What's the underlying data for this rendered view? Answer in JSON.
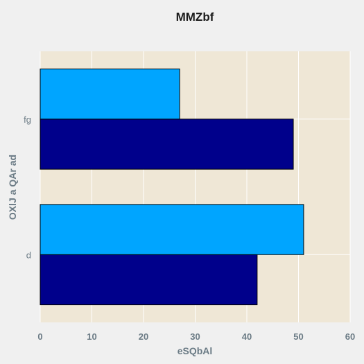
{
  "chart_data": {
    "type": "bar",
    "orientation": "horizontal",
    "title": "MMZbf",
    "xlabel": "eSQbAl",
    "ylabel": "OXlJ  a QAr ad",
    "categories": [
      "d",
      "fg"
    ],
    "series": [
      {
        "values": [
          42,
          49
        ],
        "color": "#00008b"
      },
      {
        "values": [
          51,
          27
        ],
        "color": "#00a5ff"
      }
    ],
    "xlim": [
      0,
      60
    ],
    "xticks": [
      "0",
      "10",
      "20",
      "30",
      "40",
      "50",
      "60"
    ],
    "grid": true,
    "legend": "none",
    "colors": {
      "plot_background": "#efe7d6",
      "figure_background": "#f0f0f0",
      "grid": "#ffffff",
      "bar_edge": "#000000",
      "label_text": "#6b7b85"
    }
  }
}
